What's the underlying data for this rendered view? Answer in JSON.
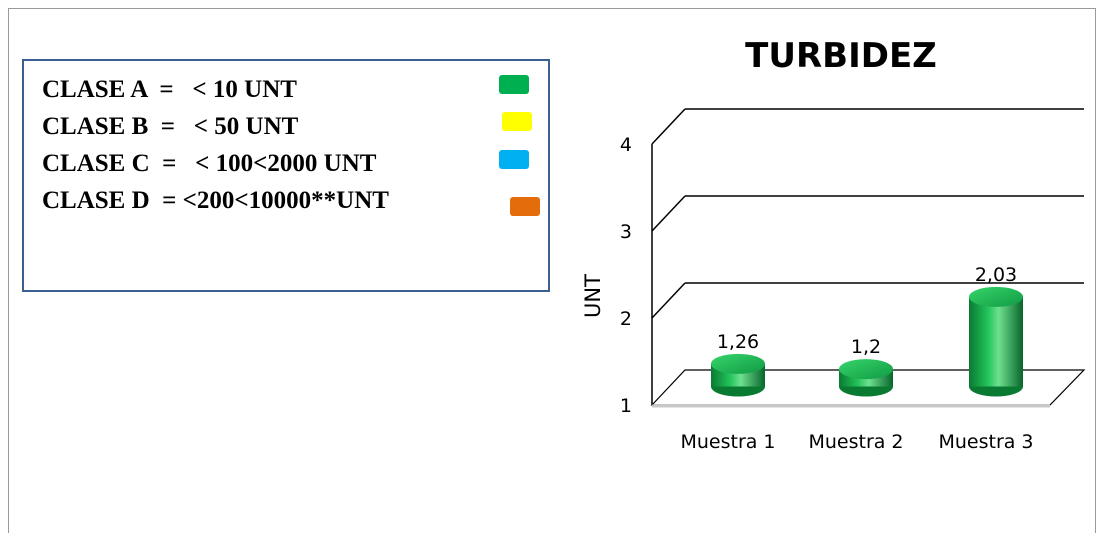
{
  "legend": {
    "items": [
      {
        "text": "CLASE A  =   < 10 UNT",
        "color": "#00b050"
      },
      {
        "text": "CLASE B  =   < 50 UNT",
        "color": "#ffff00"
      },
      {
        "text": "CLASE C  =   < 100<2000 UNT",
        "color": "#00b0f0"
      },
      {
        "text": "CLASE D  = <200<10000**UNT",
        "color": "#e46c0a"
      }
    ]
  },
  "chart_data": {
    "type": "bar",
    "title": "TURBIDEZ",
    "xlabel": "",
    "ylabel": "UNT",
    "categories": [
      "Muestra 1",
      "Muestra 2",
      "Muestra 3"
    ],
    "values": [
      1.26,
      1.2,
      2.03
    ],
    "data_labels": [
      "1,26",
      "1,2",
      "2,03"
    ],
    "ylim": [
      1,
      4
    ],
    "yticks": [
      "1",
      "2",
      "3",
      "4"
    ],
    "grid": true,
    "style": "3d-cylinder",
    "bar_color": "#00b050"
  }
}
